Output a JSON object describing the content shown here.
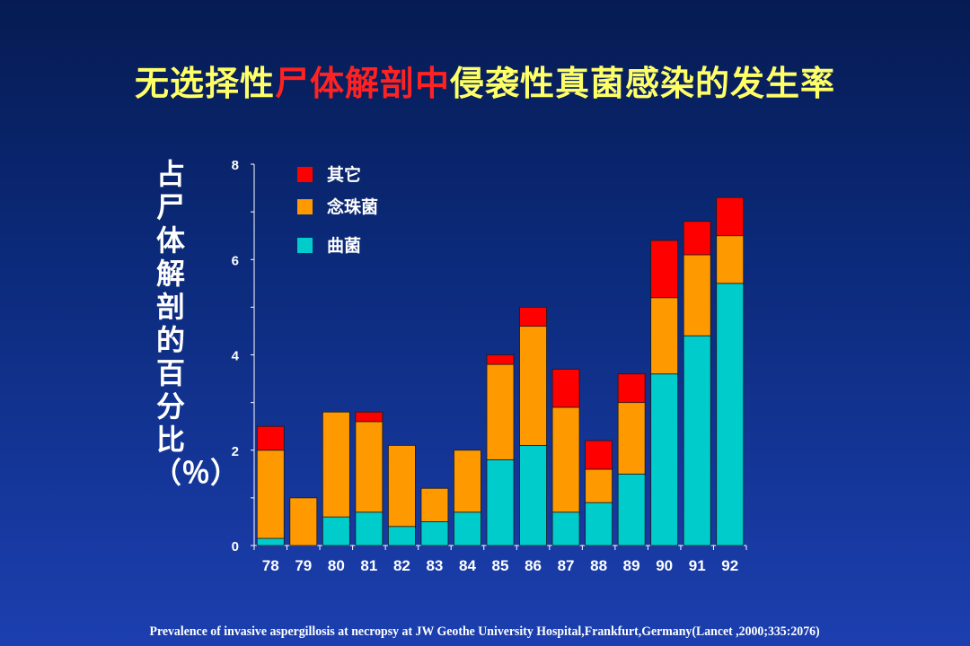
{
  "title": {
    "part1": "无选择性",
    "part2": "尸体解剖中",
    "part3": "侵袭性真菌感染的发生率"
  },
  "colors": {
    "title": "#ffff66",
    "title_highlight": "#ff2222",
    "background_top": "#061b52",
    "background_bottom": "#1c3fb0"
  },
  "footnote": "Prevalence of invasive aspergillosis at necropsy at JW Geothe University Hospital,Frankfurt,Germany(Lancet ,2000;335:2076)",
  "chart_data": {
    "type": "bar",
    "stacked": true,
    "ylabel": "占尸体解剖的百分比（％）",
    "xlabel": "",
    "categories": [
      "78",
      "79",
      "80",
      "81",
      "82",
      "83",
      "84",
      "85",
      "86",
      "87",
      "88",
      "89",
      "90",
      "91",
      "92"
    ],
    "ylim": [
      0,
      8
    ],
    "yticks": [
      0,
      2,
      4,
      6,
      8
    ],
    "grid": false,
    "legend_position": "top-left",
    "series": [
      {
        "name": "曲菌",
        "color": "#00cccc",
        "values": [
          0.15,
          0.0,
          0.6,
          0.7,
          0.4,
          0.5,
          0.7,
          1.8,
          2.1,
          0.7,
          0.9,
          1.5,
          3.6,
          4.4,
          5.5
        ]
      },
      {
        "name": "念珠菌",
        "color": "#ff9900",
        "values": [
          1.85,
          1.0,
          2.2,
          1.9,
          1.7,
          0.7,
          1.3,
          2.0,
          2.5,
          2.2,
          0.7,
          1.5,
          1.6,
          1.7,
          1.0
        ]
      },
      {
        "name": "其它",
        "color": "#ff0000",
        "values": [
          0.5,
          0.0,
          0.0,
          0.2,
          0.0,
          0.0,
          0.0,
          0.2,
          0.4,
          0.8,
          0.6,
          0.6,
          1.2,
          0.7,
          0.8
        ]
      }
    ],
    "legend_order": [
      "其它",
      "念珠菌",
      "曲菌"
    ]
  }
}
